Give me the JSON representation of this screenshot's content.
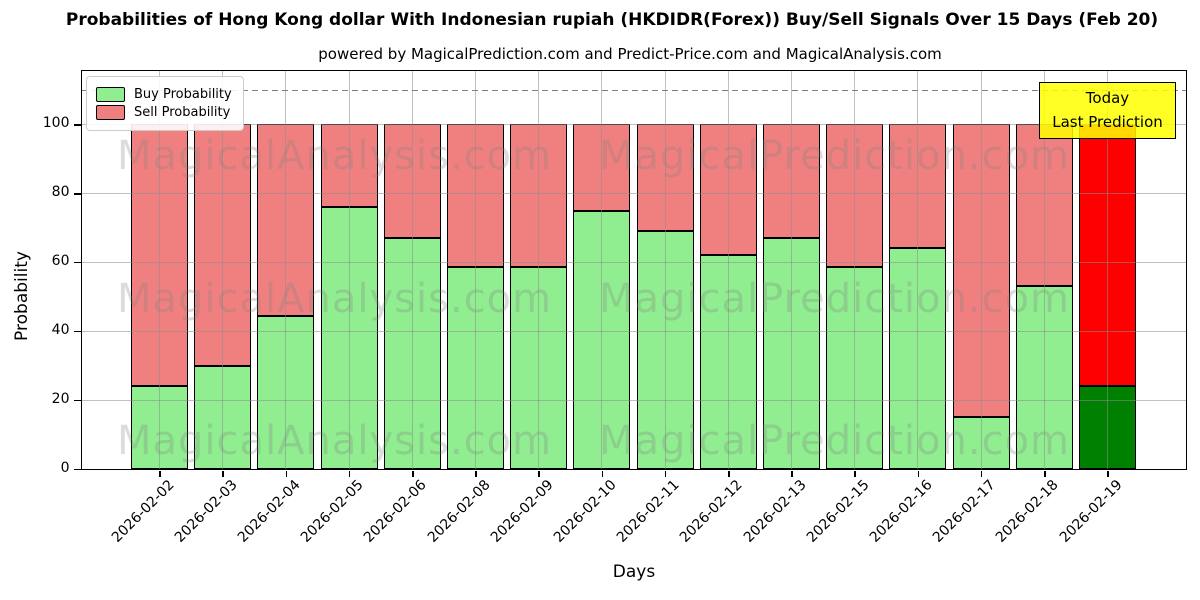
{
  "title": "Probabilities of Hong Kong dollar With Indonesian rupiah (HKDIDR(Forex)) Buy/Sell Signals Over 15 Days (Feb 20)",
  "subtitle": "powered by MagicalPrediction.com and Predict-Price.com and MagicalAnalysis.com",
  "watermark": {
    "left_text": "MagicalAnalysis.com",
    "right_text": "MagicalPrediction.com"
  },
  "annotation_box": {
    "lines": [
      "Today",
      "Last Prediction"
    ],
    "bg_color": "#FFFF00"
  },
  "legend": {
    "items": [
      {
        "label": "Buy Probability",
        "color": "#90EE90"
      },
      {
        "label": "Sell Probability",
        "color": "#F08080"
      }
    ]
  },
  "chart_data": {
    "type": "bar",
    "stacked": true,
    "title": "Probabilities of Hong Kong dollar With Indonesian rupiah (HKDIDR(Forex)) Buy/Sell Signals Over 15 Days (Feb 20)",
    "xlabel": "Days",
    "ylabel": "Probability",
    "yticks": [
      0,
      20,
      40,
      60,
      80,
      100
    ],
    "ylim": [
      0,
      115.5
    ],
    "grid": true,
    "legend_position": "upper left",
    "dashed_guideline_y": 110,
    "categories": [
      "2026-02-02",
      "2026-02-03",
      "2026-02-04",
      "2026-02-05",
      "2026-02-06",
      "2026-02-08",
      "2026-02-09",
      "2026-02-10",
      "2026-02-11",
      "2026-02-12",
      "2026-02-13",
      "2026-02-15",
      "2026-02-16",
      "2026-02-17",
      "2026-02-18",
      "2026-02-19"
    ],
    "series": [
      {
        "name": "Buy Probability",
        "color": "#90EE90",
        "values": [
          24,
          30,
          44.5,
          76,
          67,
          58.5,
          58.5,
          75,
          69,
          62,
          67,
          58.5,
          64,
          15,
          53,
          24
        ]
      },
      {
        "name": "Sell Probability",
        "color": "#F08080",
        "values": [
          76,
          70,
          55.5,
          24,
          33,
          41.5,
          41.5,
          25,
          31,
          38,
          33,
          41.5,
          36,
          85,
          47,
          76
        ]
      }
    ],
    "last_bar_highlight": {
      "buy_color": "#008000",
      "sell_color": "#FF0000"
    }
  }
}
